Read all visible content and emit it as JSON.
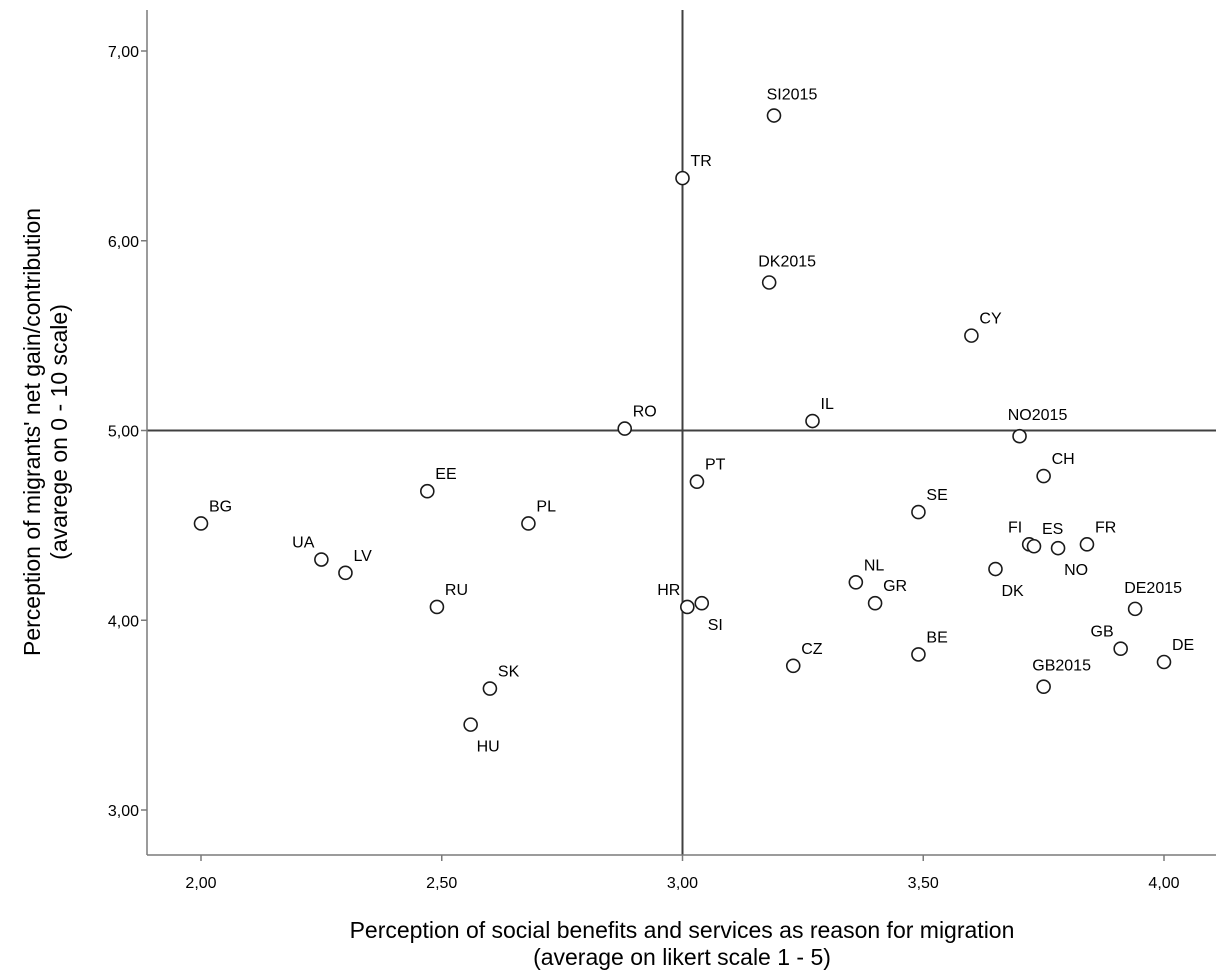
{
  "chart_data": {
    "type": "scatter",
    "title": "",
    "xlabel_lines": [
      "Perception of social benefits and services as reason for migration",
      "(average on likert scale 1 - 5)"
    ],
    "ylabel_lines": [
      "Perception of migrants' net gain/contribution",
      "(avarege on 0 - 10 scale)"
    ],
    "xlim": [
      1.9,
      4.1
    ],
    "ylim": [
      2.78,
      7.22
    ],
    "xticks": [
      2.0,
      2.5,
      3.0,
      3.5,
      4.0
    ],
    "xtick_labels": [
      "2,00",
      "2,50",
      "3,00",
      "3,50",
      "4,00"
    ],
    "yticks": [
      3.0,
      4.0,
      5.0,
      6.0,
      7.0
    ],
    "ytick_labels": [
      "3,00",
      "4,00",
      "5,00",
      "6,00",
      "7,00"
    ],
    "reference_lines": {
      "x": 3.0,
      "y": 5.0
    },
    "grid": false,
    "legend": "none",
    "marker": "open-circle",
    "colors": {
      "marker": "#1a1a1a",
      "lines": "#404040",
      "axis": "#7a7a7a",
      "text": "#000000"
    },
    "points": [
      {
        "label": "BG",
        "x": 2.0,
        "y": 4.51,
        "label_pos": "ne"
      },
      {
        "label": "UA",
        "x": 2.25,
        "y": 4.32,
        "label_pos": "nw"
      },
      {
        "label": "LV",
        "x": 2.3,
        "y": 4.25,
        "label_pos": "ne"
      },
      {
        "label": "EE",
        "x": 2.47,
        "y": 4.68,
        "label_pos": "ne"
      },
      {
        "label": "RU",
        "x": 2.49,
        "y": 4.07,
        "label_pos": "ne"
      },
      {
        "label": "HU",
        "x": 2.56,
        "y": 3.45,
        "label_pos": "se"
      },
      {
        "label": "SK",
        "x": 2.6,
        "y": 3.64,
        "label_pos": "ne"
      },
      {
        "label": "PL",
        "x": 2.68,
        "y": 4.51,
        "label_pos": "ne"
      },
      {
        "label": "RO",
        "x": 2.88,
        "y": 5.01,
        "label_pos": "ne"
      },
      {
        "label": "TR",
        "x": 3.0,
        "y": 6.33,
        "label_pos": "ne"
      },
      {
        "label": "HR",
        "x": 3.01,
        "y": 4.07,
        "label_pos": "nw"
      },
      {
        "label": "PT",
        "x": 3.03,
        "y": 4.73,
        "label_pos": "ne"
      },
      {
        "label": "SI",
        "x": 3.04,
        "y": 4.09,
        "label_pos": "se"
      },
      {
        "label": "DK2015",
        "x": 3.18,
        "y": 5.78,
        "label_pos": "n"
      },
      {
        "label": "SI2015",
        "x": 3.19,
        "y": 6.66,
        "label_pos": "n"
      },
      {
        "label": "CZ",
        "x": 3.23,
        "y": 3.76,
        "label_pos": "ne"
      },
      {
        "label": "IL",
        "x": 3.27,
        "y": 5.05,
        "label_pos": "ne"
      },
      {
        "label": "NL",
        "x": 3.36,
        "y": 4.2,
        "label_pos": "ne"
      },
      {
        "label": "GR",
        "x": 3.4,
        "y": 4.09,
        "label_pos": "ne"
      },
      {
        "label": "SE",
        "x": 3.49,
        "y": 4.57,
        "label_pos": "ne"
      },
      {
        "label": "BE",
        "x": 3.49,
        "y": 3.82,
        "label_pos": "ne"
      },
      {
        "label": "CY",
        "x": 3.6,
        "y": 5.5,
        "label_pos": "ne"
      },
      {
        "label": "DK",
        "x": 3.65,
        "y": 4.27,
        "label_pos": "se"
      },
      {
        "label": "NO2015",
        "x": 3.7,
        "y": 4.97,
        "label_pos": "n"
      },
      {
        "label": "FI",
        "x": 3.72,
        "y": 4.4,
        "label_pos": "nw"
      },
      {
        "label": "ES",
        "x": 3.73,
        "y": 4.39,
        "label_pos": "ne"
      },
      {
        "label": "CH",
        "x": 3.75,
        "y": 4.76,
        "label_pos": "ne"
      },
      {
        "label": "GB2015",
        "x": 3.75,
        "y": 3.65,
        "label_pos": "n"
      },
      {
        "label": "NO",
        "x": 3.78,
        "y": 4.38,
        "label_pos": "se"
      },
      {
        "label": "FR",
        "x": 3.84,
        "y": 4.4,
        "label_pos": "ne"
      },
      {
        "label": "GB",
        "x": 3.91,
        "y": 3.85,
        "label_pos": "nw"
      },
      {
        "label": "DE2015",
        "x": 3.94,
        "y": 4.06,
        "label_pos": "n"
      },
      {
        "label": "DE",
        "x": 4.0,
        "y": 3.78,
        "label_pos": "ne"
      }
    ]
  }
}
